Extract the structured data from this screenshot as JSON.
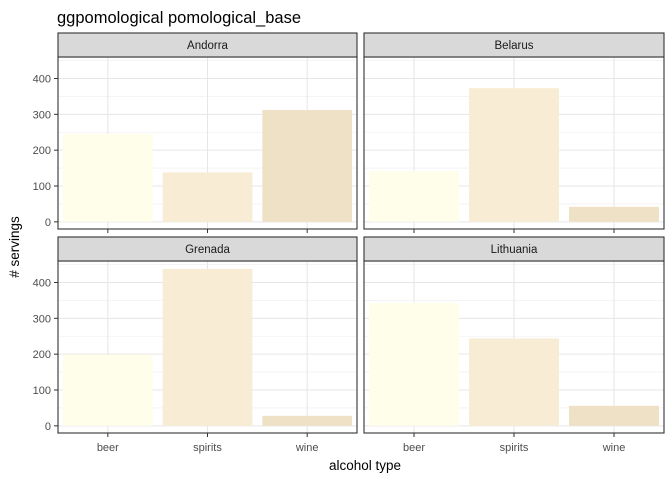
{
  "chart_data": {
    "type": "bar",
    "title": "ggpomological pomological_base",
    "xlabel": "alcohol type",
    "ylabel": "# servings",
    "categories": [
      "beer",
      "spirits",
      "wine"
    ],
    "ylim": [
      -20,
      460
    ],
    "yticks": [
      0,
      100,
      200,
      300,
      400
    ],
    "bar_colors": {
      "beer": "#fffeea",
      "spirits": "#f8edd4",
      "wine": "#efe1c6"
    },
    "panel_bg": "#ffffff",
    "strip_bg": "#d9d9d9",
    "grid": true,
    "legend": "none",
    "facets": [
      {
        "name": "Andorra",
        "values": [
          245,
          138,
          312
        ]
      },
      {
        "name": "Belarus",
        "values": [
          142,
          373,
          42
        ]
      },
      {
        "name": "Grenada",
        "values": [
          199,
          438,
          28
        ]
      },
      {
        "name": "Lithuania",
        "values": [
          343,
          244,
          56
        ]
      }
    ]
  }
}
